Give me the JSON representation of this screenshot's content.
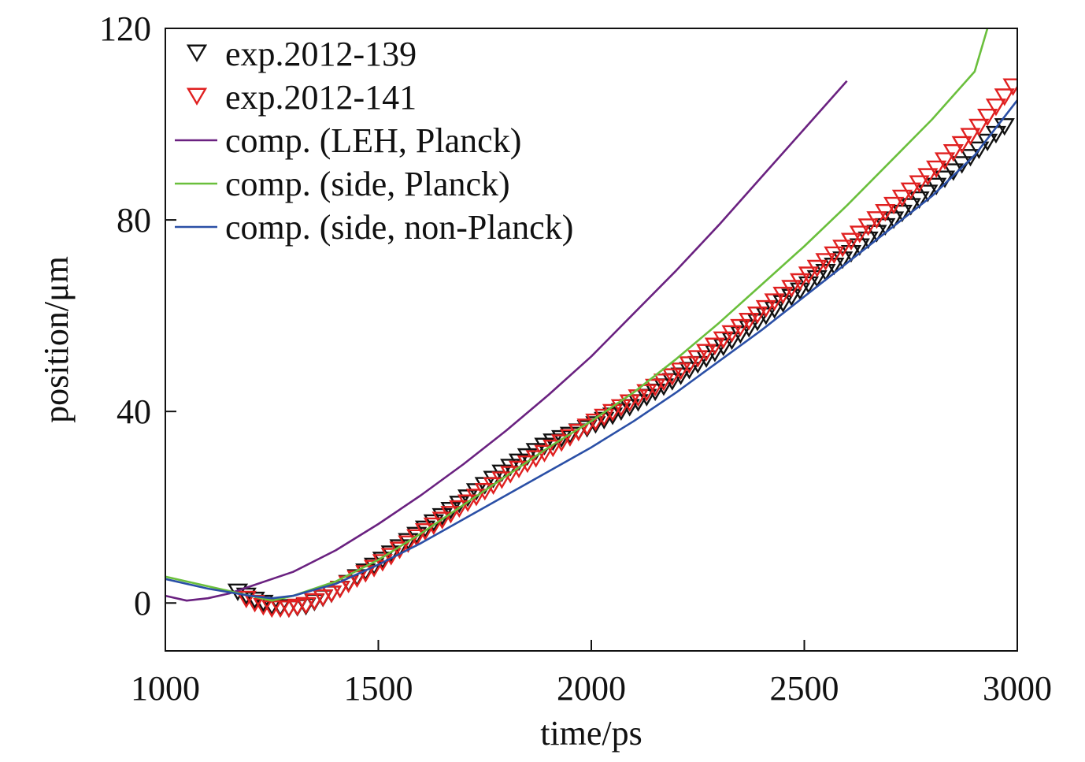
{
  "chart_data": {
    "type": "line",
    "xlabel": "time/ps",
    "ylabel": "position/μm",
    "xlim": [
      1000,
      3000
    ],
    "ylim": [
      -10,
      120
    ],
    "xticks": [
      "1000",
      "1500",
      "2000",
      "2500",
      "3000"
    ],
    "yticks": [
      "0",
      "40",
      "80",
      "120"
    ],
    "legend_position": "top-left",
    "grid": false,
    "series": [
      {
        "name": "exp.2012-139",
        "kind": "markers",
        "marker": "triangle-down",
        "color": "#111111",
        "x_start": 1170,
        "x_end": 2980,
        "x_step": 20,
        "x_knots": [
          1170,
          1210,
          1250,
          1290,
          1330,
          1400,
          1500,
          1600,
          1700,
          1800,
          1900,
          2000,
          2100,
          2200,
          2300,
          2400,
          2500,
          2600,
          2700,
          2800,
          2900,
          2980
        ],
        "y_knots": [
          2.5,
          0.8,
          -0.5,
          -1.0,
          -0.5,
          2.5,
          8.5,
          15.0,
          21.5,
          28.0,
          33.5,
          37.0,
          41.5,
          47.0,
          53.0,
          59.5,
          66.0,
          72.5,
          79.5,
          86.5,
          94.0,
          100.5
        ]
      },
      {
        "name": "exp.2012-141",
        "kind": "markers",
        "marker": "triangle-down",
        "color": "#e02020",
        "x_start": 1190,
        "x_end": 2990,
        "x_step": 20,
        "x_knots": [
          1190,
          1220,
          1250,
          1290,
          1330,
          1400,
          1500,
          1600,
          1700,
          1800,
          1900,
          2000,
          2100,
          2200,
          2300,
          2400,
          2500,
          2600,
          2700,
          2800,
          2900,
          2990
        ],
        "y_knots": [
          1.0,
          -0.3,
          -1.0,
          -1.0,
          -0.3,
          2.5,
          8.0,
          14.5,
          20.5,
          26.5,
          32.0,
          37.5,
          42.5,
          48.0,
          54.5,
          61.0,
          68.0,
          75.0,
          82.5,
          90.0,
          98.5,
          108.0
        ]
      },
      {
        "name": "comp. (LEH, Planck)",
        "kind": "line",
        "color": "#6a2180",
        "x": [
          1000,
          1050,
          1100,
          1150,
          1200,
          1250,
          1300,
          1400,
          1500,
          1600,
          1700,
          1800,
          1900,
          2000,
          2100,
          2200,
          2300,
          2400,
          2500,
          2600
        ],
        "y": [
          1.5,
          0.5,
          1.0,
          2.0,
          3.5,
          5.0,
          6.5,
          11.0,
          16.5,
          22.5,
          29.0,
          36.0,
          43.5,
          51.5,
          60.5,
          69.5,
          79.0,
          89.0,
          99.0,
          109.0
        ]
      },
      {
        "name": "comp. (side, Planck)",
        "kind": "line",
        "color": "#6abf3c",
        "x": [
          1000,
          1100,
          1200,
          1250,
          1300,
          1400,
          1500,
          1600,
          1700,
          1800,
          1900,
          2000,
          2100,
          2200,
          2300,
          2400,
          2500,
          2600,
          2700,
          2800,
          2900,
          2930
        ],
        "y": [
          5.5,
          3.5,
          1.5,
          0.5,
          1.5,
          4.5,
          9.0,
          14.5,
          20.5,
          26.5,
          32.5,
          38.0,
          44.0,
          51.0,
          58.5,
          66.5,
          74.5,
          83.0,
          92.0,
          101.0,
          111.0,
          120.0
        ]
      },
      {
        "name": "comp. (side, non-Planck)",
        "kind": "line",
        "color": "#2a4fa6",
        "x": [
          1000,
          1100,
          1200,
          1250,
          1300,
          1400,
          1500,
          1600,
          1700,
          1800,
          1900,
          2000,
          2100,
          2200,
          2300,
          2400,
          2500,
          2600,
          2700,
          2800,
          2900,
          3000
        ],
        "y": [
          5.0,
          3.0,
          1.5,
          1.0,
          1.5,
          4.0,
          8.0,
          12.5,
          17.5,
          22.5,
          27.5,
          32.5,
          38.0,
          44.0,
          50.5,
          57.0,
          64.0,
          71.0,
          78.0,
          85.0,
          93.5,
          105.0
        ]
      }
    ]
  }
}
